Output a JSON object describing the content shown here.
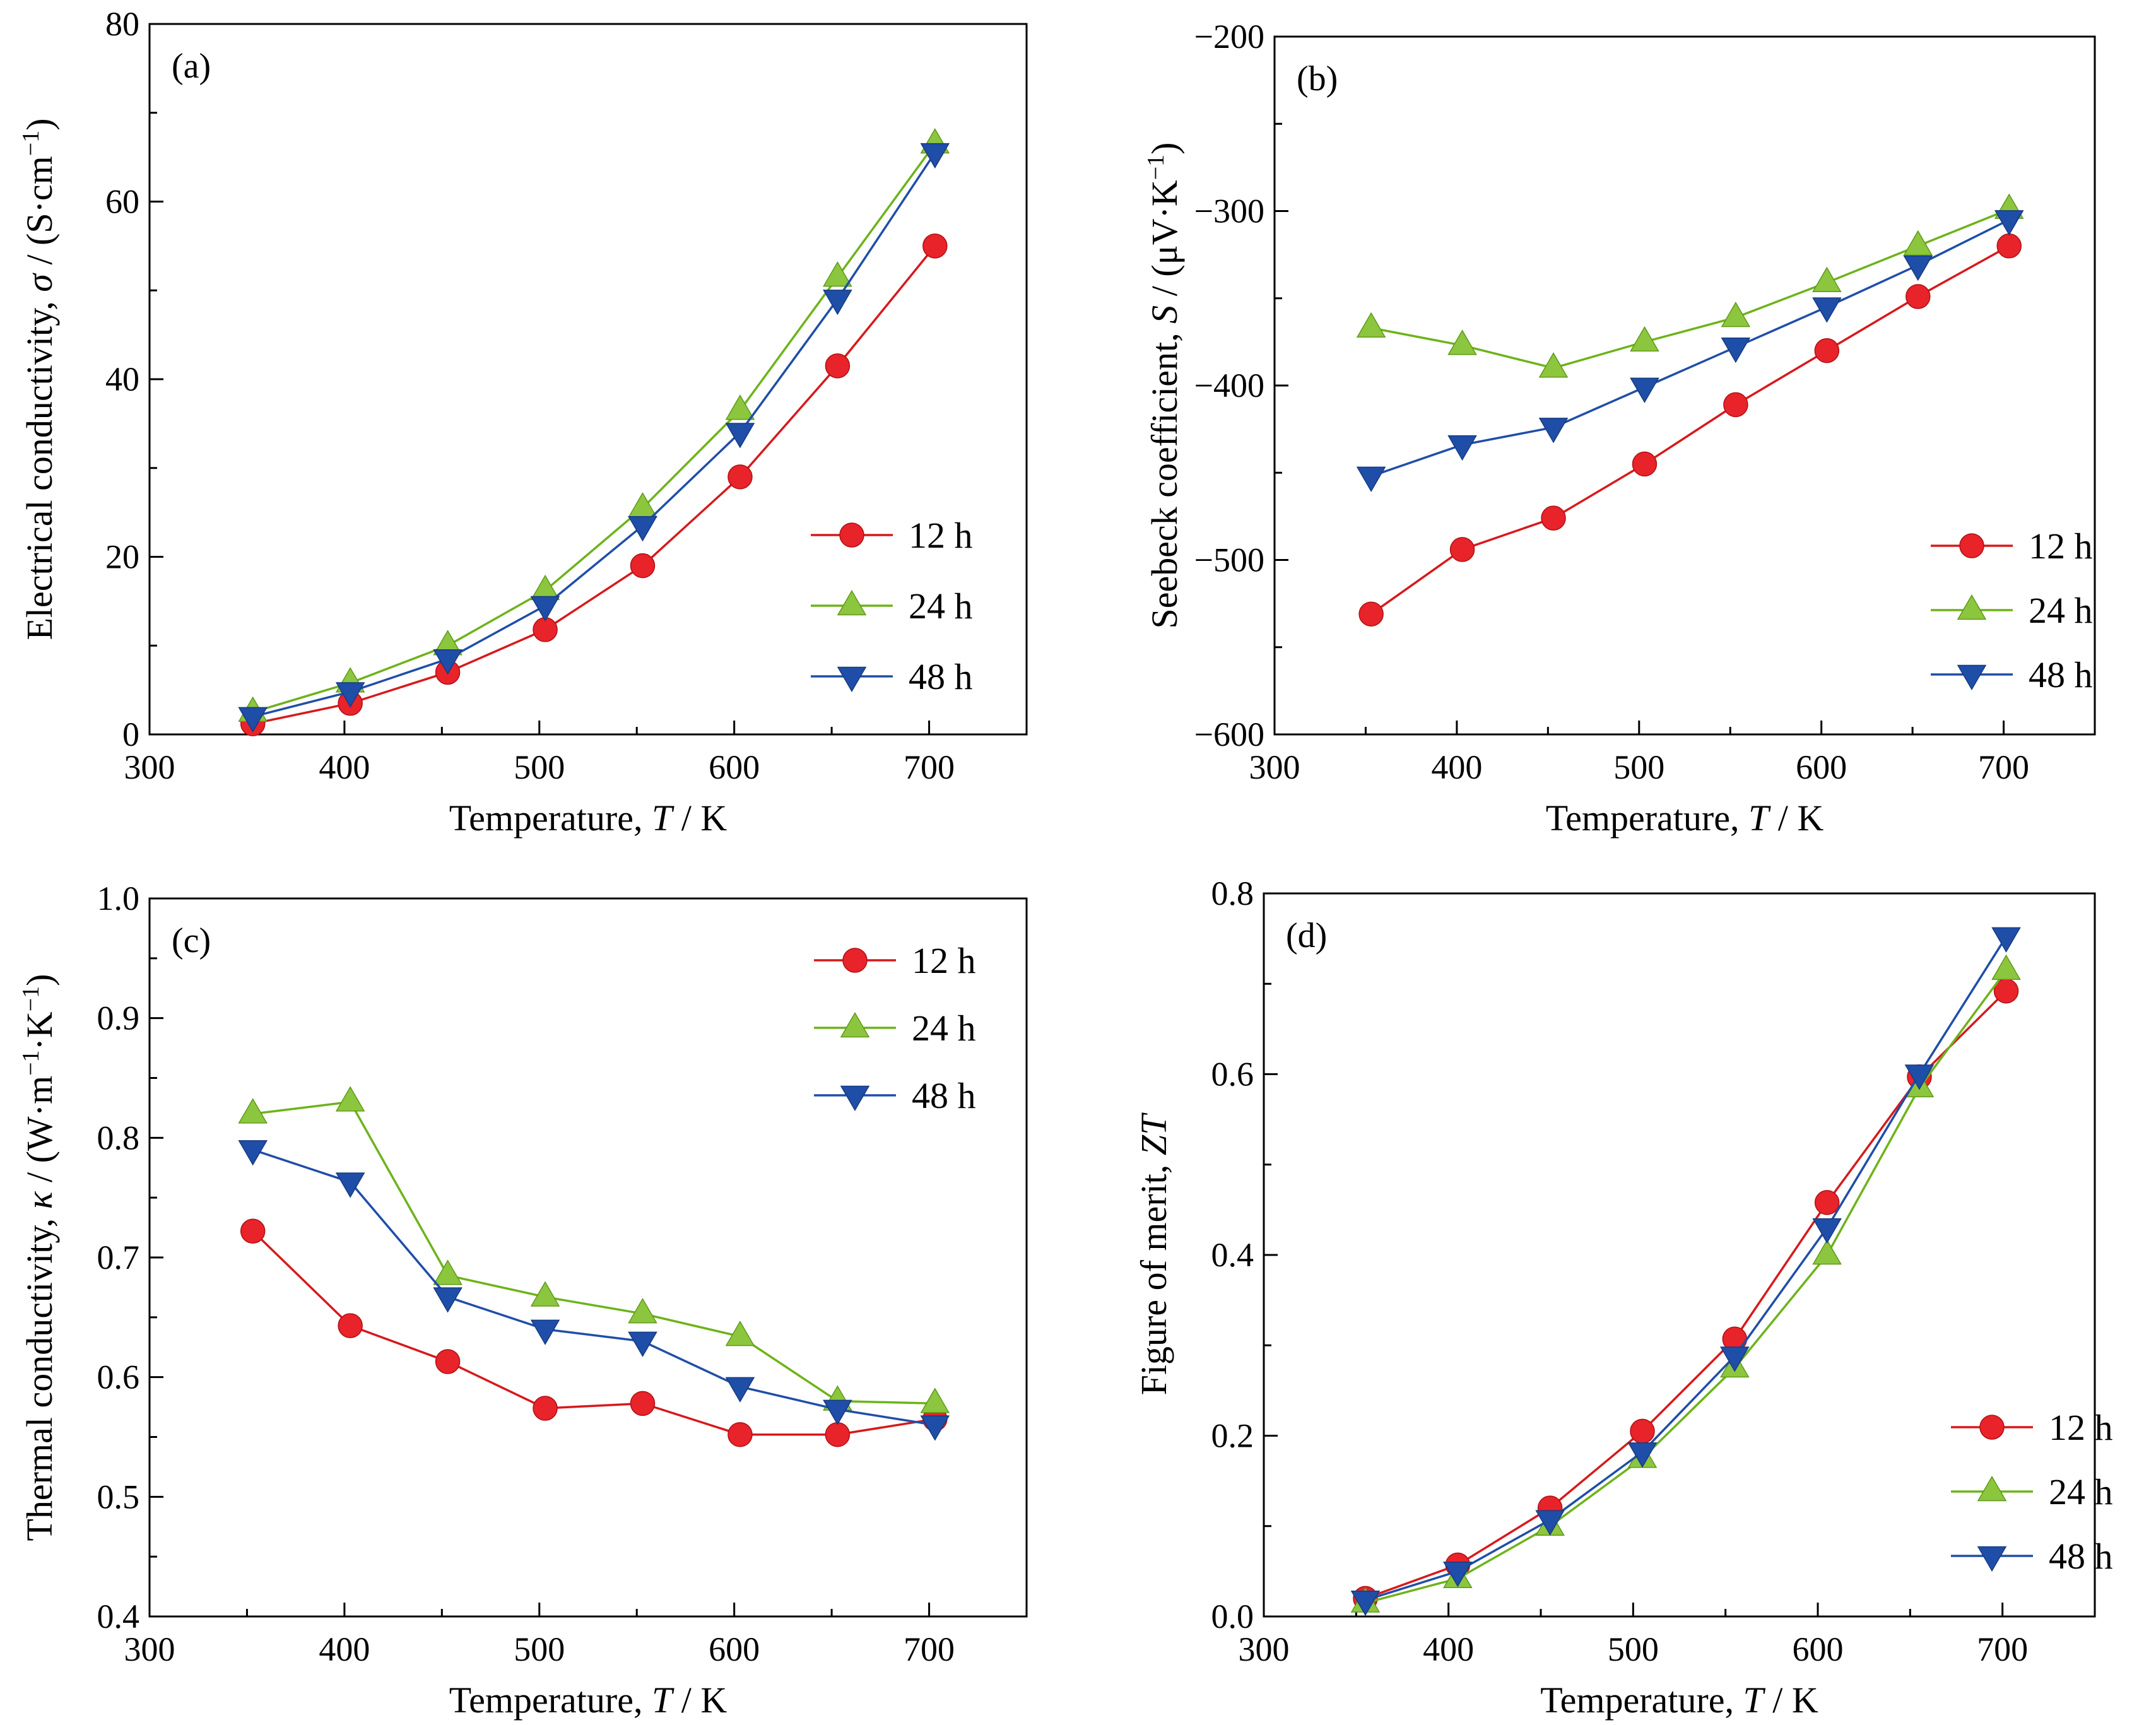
{
  "chart_data": [
    {
      "type": "line",
      "panel_label": "(a)",
      "xlabel_prefix": "Temperature, ",
      "xlabel_var": "T",
      "xlabel_suffix": " / K",
      "ylabel_prefix": "Electrical conductivity, ",
      "ylabel_var": "σ",
      "ylabel_mid": " / (S·cm",
      "ylabel_sup": "−1",
      "ylabel_end": ")",
      "xlim": [
        300,
        750
      ],
      "ylim": [
        0,
        80
      ],
      "xticks": [
        300,
        400,
        500,
        600,
        700
      ],
      "yticks": [
        0,
        20,
        40,
        60,
        80
      ],
      "ytick_decimals": 0,
      "legend": "center-right",
      "x": [
        353,
        403,
        453,
        503,
        553,
        603,
        653,
        703
      ],
      "series": [
        {
          "name": "12 h",
          "marker": "circle",
          "color": "#d7191c",
          "marker_color": "#e8232a",
          "line_color": "#d7191c",
          "values": [
            1.2,
            3.5,
            7,
            11.8,
            19,
            29,
            41.5,
            55
          ]
        },
        {
          "name": "24 h",
          "marker": "triangle-up",
          "color": "#7fc31c",
          "marker_color": "#8cc63f",
          "line_color": "#6db31a",
          "values": [
            2.5,
            5.8,
            10,
            16.2,
            25.5,
            36.5,
            51.5,
            66.5
          ]
        },
        {
          "name": "48 h",
          "marker": "triangle-down",
          "color": "#1f4ea8",
          "marker_color": "#1f4ea8",
          "line_color": "#1f4ea8",
          "values": [
            2,
            4.8,
            8.5,
            14.5,
            23.5,
            34,
            49,
            65.5
          ]
        }
      ]
    },
    {
      "type": "line",
      "panel_label": "(b)",
      "xlabel_prefix": "Temperature, ",
      "xlabel_var": "T",
      "xlabel_suffix": " / K",
      "ylabel_prefix": "Seebeck coefficient, ",
      "ylabel_var": "S",
      "ylabel_mid": " / (μV·K",
      "ylabel_sup": "−1",
      "ylabel_end": ")",
      "xlim": [
        300,
        750
      ],
      "ylim": [
        -600,
        -200
      ],
      "xticks": [
        300,
        400,
        500,
        600,
        700
      ],
      "yticks": [
        -600,
        -500,
        -400,
        -300,
        -200
      ],
      "ytick_decimals": 0,
      "legend": "lower-right",
      "x": [
        353,
        403,
        453,
        503,
        553,
        603,
        653,
        703
      ],
      "series": [
        {
          "name": "12 h",
          "marker": "circle",
          "color": "#d7191c",
          "marker_color": "#e8232a",
          "line_color": "#d7191c",
          "values": [
            -531,
            -494,
            -476,
            -445,
            -411,
            -380,
            -349,
            -320
          ]
        },
        {
          "name": "24 h",
          "marker": "triangle-up",
          "color": "#7fc31c",
          "marker_color": "#8cc63f",
          "line_color": "#6db31a",
          "values": [
            -367,
            -377,
            -390,
            -375,
            -361,
            -341,
            -320,
            -299
          ]
        },
        {
          "name": "48 h",
          "marker": "triangle-down",
          "color": "#1f4ea8",
          "marker_color": "#1f4ea8",
          "line_color": "#1f4ea8",
          "values": [
            -452,
            -434,
            -424,
            -401,
            -378,
            -355,
            -331,
            -305
          ]
        }
      ]
    },
    {
      "type": "line",
      "panel_label": "(c)",
      "xlabel_prefix": "Temperature, ",
      "xlabel_var": "T",
      "xlabel_suffix": " / K",
      "ylabel_prefix": "Thermal conductivity, ",
      "ylabel_var": "κ",
      "ylabel_mid": " / (W·m",
      "ylabel_sup": "−1",
      "ylabel_end": "·K",
      "ylabel_sup2": "−1",
      "ylabel_end2": ")",
      "xlim": [
        300,
        750
      ],
      "ylim": [
        0.4,
        1.0
      ],
      "xticks": [
        300,
        400,
        500,
        600,
        700
      ],
      "yticks": [
        0.4,
        0.5,
        0.6,
        0.7,
        0.8,
        0.9,
        1.0
      ],
      "ytick_decimals": 1,
      "legend": "top-right",
      "x": [
        353,
        403,
        453,
        503,
        553,
        603,
        653,
        703
      ],
      "series": [
        {
          "name": "12 h",
          "marker": "circle",
          "color": "#d7191c",
          "marker_color": "#e8232a",
          "line_color": "#d7191c",
          "values": [
            0.722,
            0.643,
            0.613,
            0.574,
            0.578,
            0.552,
            0.552,
            0.565
          ]
        },
        {
          "name": "24 h",
          "marker": "triangle-up",
          "color": "#7fc31c",
          "marker_color": "#8cc63f",
          "line_color": "#6db31a",
          "values": [
            0.82,
            0.83,
            0.685,
            0.667,
            0.653,
            0.634,
            0.58,
            0.578
          ]
        },
        {
          "name": "48 h",
          "marker": "triangle-down",
          "color": "#1f4ea8",
          "marker_color": "#1f4ea8",
          "line_color": "#1f4ea8",
          "values": [
            0.79,
            0.763,
            0.667,
            0.64,
            0.63,
            0.592,
            0.573,
            0.56
          ]
        }
      ]
    },
    {
      "type": "line",
      "panel_label": "(d)",
      "xlabel_prefix": "Temperature, ",
      "xlabel_var": "T",
      "xlabel_suffix": " / K",
      "ylabel_prefix": "Figure of merit, ",
      "ylabel_var": "ZT",
      "ylabel_mid": "",
      "ylabel_sup": "",
      "ylabel_end": "",
      "xlim": [
        300,
        750
      ],
      "ylim": [
        0.0,
        0.8
      ],
      "xticks": [
        300,
        400,
        500,
        600,
        700
      ],
      "yticks": [
        0.0,
        0.2,
        0.4,
        0.6,
        0.8
      ],
      "ytick_decimals": 1,
      "legend": "lower-right",
      "x": [
        355,
        405,
        455,
        505,
        555,
        605,
        655,
        702
      ],
      "series": [
        {
          "name": "12 h",
          "marker": "circle",
          "color": "#d7191c",
          "marker_color": "#e8232a",
          "line_color": "#d7191c",
          "values": [
            0.02,
            0.057,
            0.12,
            0.205,
            0.307,
            0.458,
            0.597,
            0.692
          ]
        },
        {
          "name": "24 h",
          "marker": "triangle-up",
          "color": "#7fc31c",
          "marker_color": "#8cc63f",
          "line_color": "#6db31a",
          "values": [
            0.015,
            0.042,
            0.1,
            0.175,
            0.275,
            0.4,
            0.585,
            0.715
          ]
        },
        {
          "name": "48 h",
          "marker": "triangle-down",
          "color": "#1f4ea8",
          "marker_color": "#1f4ea8",
          "line_color": "#1f4ea8",
          "values": [
            0.018,
            0.05,
            0.107,
            0.182,
            0.288,
            0.43,
            0.6,
            0.752
          ]
        }
      ]
    }
  ]
}
